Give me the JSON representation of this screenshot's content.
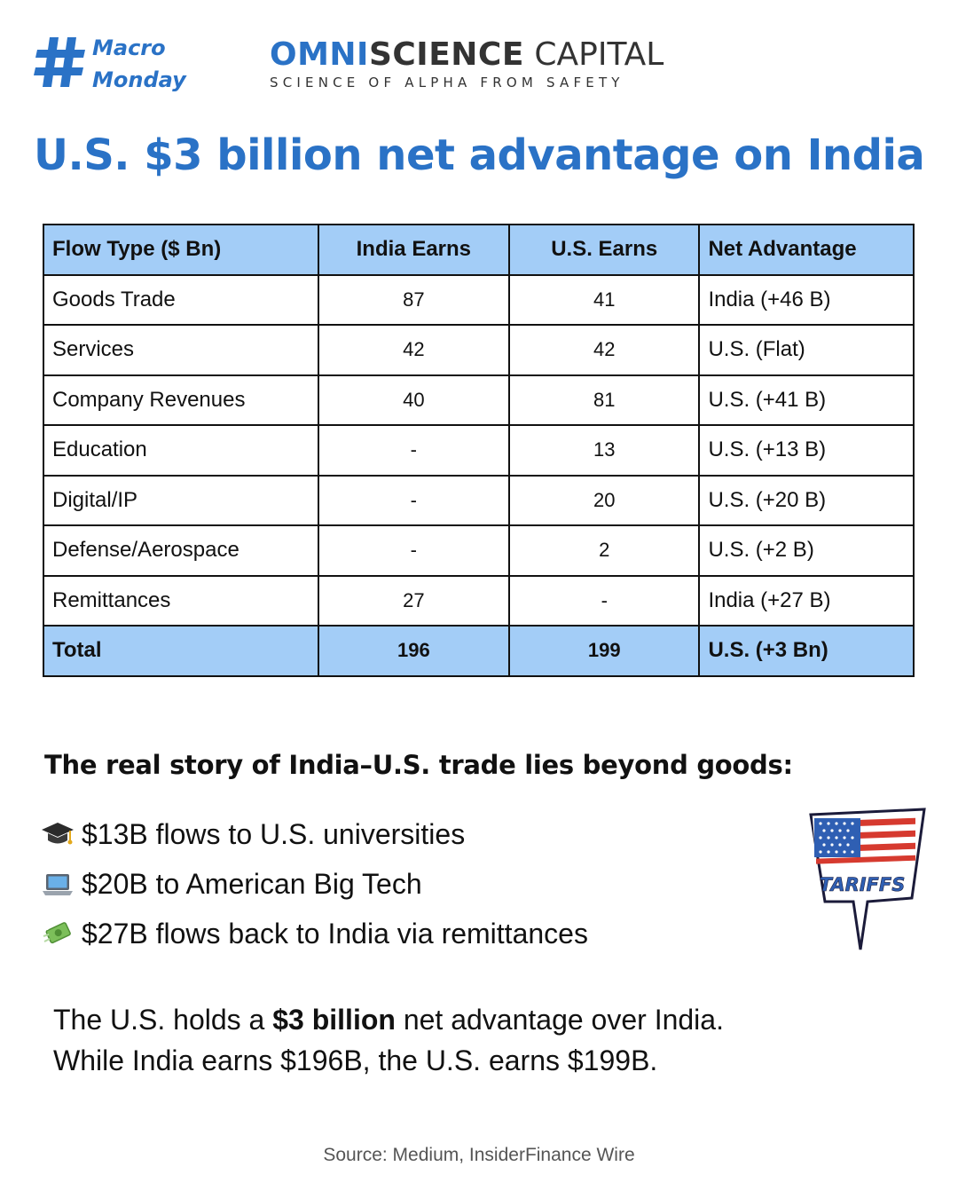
{
  "header": {
    "hashtag_line1": "Macro",
    "hashtag_line2": "Monday",
    "logo_part1": "OMNI",
    "logo_part2": "SCIENCE",
    "logo_part3": " CAPITAL",
    "tagline": "SCIENCE OF ALPHA FROM SAFETY",
    "hashtag_icon": "hashtag-icon"
  },
  "title": "U.S. $3 billion net advantage on India",
  "table": {
    "headers": [
      "Flow Type ($ Bn)",
      "India Earns",
      "U.S. Earns",
      "Net Advantage"
    ],
    "rows": [
      [
        "Goods Trade",
        "87",
        "41",
        "India (+46 B)"
      ],
      [
        "Services",
        "42",
        "42",
        "U.S. (Flat)"
      ],
      [
        "Company Revenues",
        "40",
        "81",
        "U.S. (+41 B)"
      ],
      [
        "Education",
        "-",
        "13",
        "U.S. (+13 B)"
      ],
      [
        "Digital/IP",
        "-",
        "20",
        "U.S. (+20 B)"
      ],
      [
        "Defense/Aerospace",
        "-",
        "2",
        "U.S. (+2 B)"
      ],
      [
        "Remittances",
        "27",
        "-",
        "India (+27 B)"
      ]
    ],
    "total": [
      "Total",
      "196",
      "199",
      "U.S. (+3 Bn)"
    ]
  },
  "story": {
    "heading": "The real story of India–U.S. trade lies beyond goods:",
    "bullets": [
      {
        "icon": "graduation-cap-icon",
        "text": "$13B flows to U.S. universities"
      },
      {
        "icon": "laptop-icon",
        "text": "$20B to American Big Tech"
      },
      {
        "icon": "money-flying-icon",
        "text": "$27B flows back to India via remittances"
      }
    ],
    "sign_text": "TARIFFS"
  },
  "summary": {
    "line1_pre": "The U.S. holds a ",
    "line1_bold": "$3 billion",
    "line1_post": " net advantage over India.",
    "line2": "While India earns $196B, the U.S. earns $199B."
  },
  "source": "Source: Medium, InsiderFinance Wire",
  "colors": {
    "brand_blue": "#2a72c6",
    "table_header_bg": "#a3cdf7"
  }
}
